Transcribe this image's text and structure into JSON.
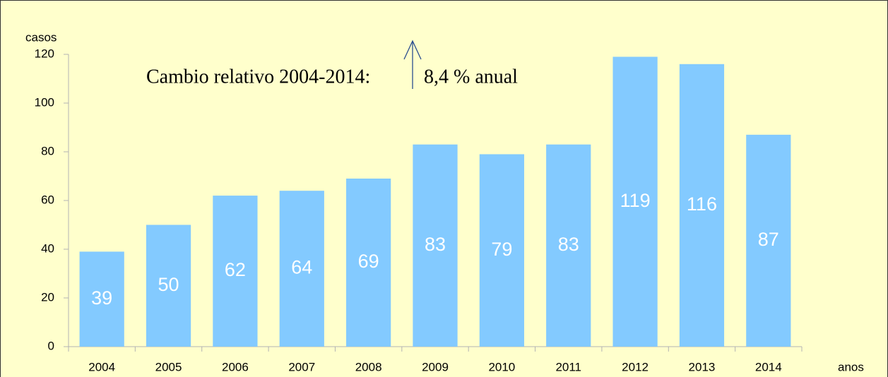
{
  "chart_data": {
    "type": "bar",
    "y_label": "casos",
    "x_label": "anos",
    "annotations": [
      "Cambio relativo 2004-2014:",
      "8,4 % anual"
    ],
    "categories": [
      "2004",
      "2005",
      "2006",
      "2007",
      "2008",
      "2009",
      "2010",
      "2011",
      "2012",
      "2013",
      "2014"
    ],
    "values": [
      39,
      50,
      62,
      64,
      69,
      83,
      79,
      83,
      119,
      116,
      87
    ],
    "color": "#83caff",
    "ylim": [
      0,
      120
    ],
    "yticks": [
      0,
      20,
      40,
      60,
      80,
      100,
      120
    ],
    "grid": false
  }
}
